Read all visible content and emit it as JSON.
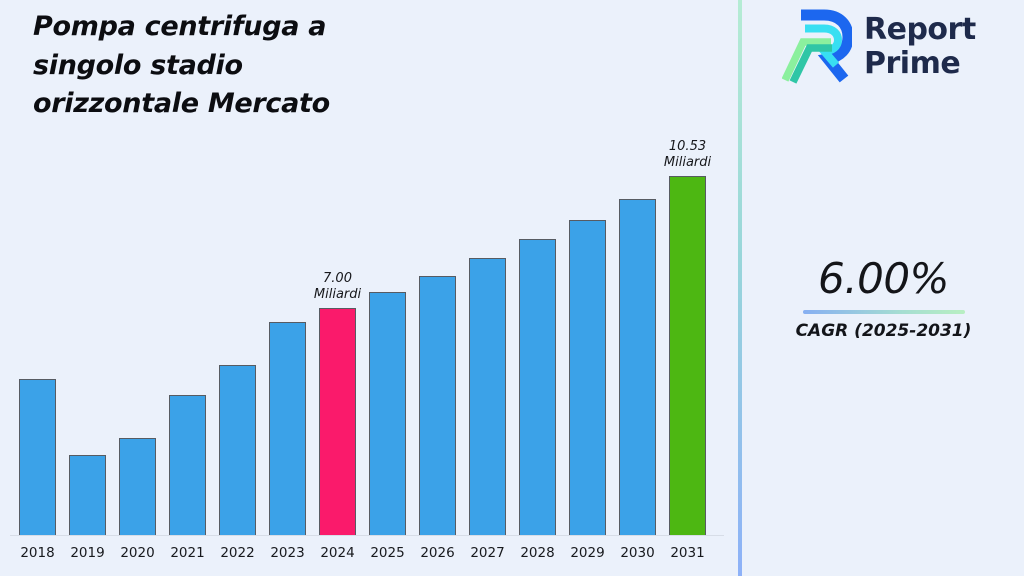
{
  "title": "Pompa centrifuga a\nsingolo stadio\norizzontale Mercato",
  "logo": {
    "word1": "Report",
    "word2": "Prime",
    "navy": "#1e2a4b",
    "icon_blue": "#1c67ef",
    "icon_cyan": "#38dff2",
    "icon_green_light": "#8bf09e",
    "icon_teal": "#2fc6a6"
  },
  "stats": {
    "cagr_value": "6.00%",
    "cagr_label": "CAGR (2025-2031)"
  },
  "chart_data": {
    "type": "bar",
    "title": "Pompa centrifuga a singolo stadio orizzontale Mercato",
    "xlabel": "",
    "ylabel": "",
    "unit": "Miliardi",
    "ylim": [
      0,
      11
    ],
    "grid": false,
    "legend": false,
    "categories": [
      "2018",
      "2019",
      "2020",
      "2021",
      "2022",
      "2023",
      "2024",
      "2025",
      "2026",
      "2027",
      "2028",
      "2029",
      "2030",
      "2031"
    ],
    "values": [
      5.1,
      3.06,
      3.53,
      4.67,
      5.47,
      6.62,
      7.0,
      7.42,
      7.87,
      8.34,
      8.84,
      9.37,
      9.93,
      10.53
    ],
    "annotations": [
      {
        "category": "2024",
        "lines": [
          "7.00",
          "Miliardi"
        ]
      },
      {
        "category": "2031",
        "lines": [
          "10.53",
          "Miliardi"
        ]
      }
    ],
    "colors": {
      "bar_default": "#3BA2E8",
      "bar_border": "#575b62",
      "highlights": {
        "2024": "#FA1A6B",
        "2031": "#4DB712"
      },
      "background": "#ebf1fb",
      "axis_line": "#d7dde7"
    }
  }
}
